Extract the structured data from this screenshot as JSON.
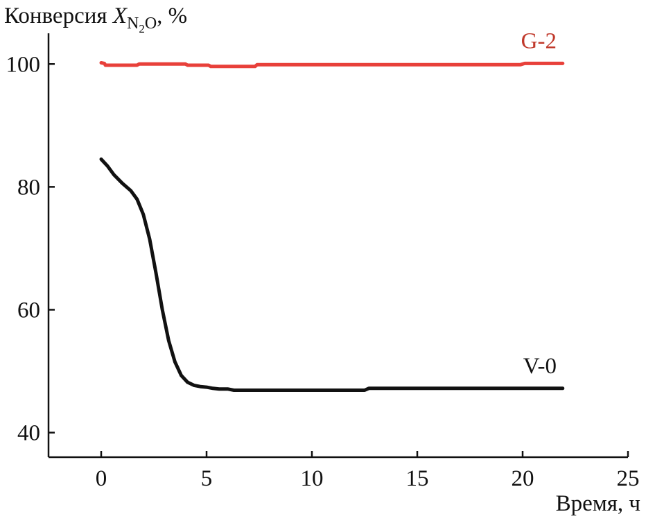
{
  "chart_data": {
    "type": "line",
    "ylabel": {
      "prefix": "Конверсия ",
      "var": "X",
      "sub_n": "N",
      "sub_2": "2",
      "sub_o": "O",
      "suffix": ", %"
    },
    "xlabel": "Время, ч",
    "xlim": [
      -2.5,
      25
    ],
    "ylim": [
      36,
      105
    ],
    "xticks": [
      0,
      5,
      10,
      15,
      20,
      25
    ],
    "yticks": [
      40,
      60,
      80,
      100
    ],
    "grid": false,
    "series": [
      {
        "name": "G-2",
        "color": "#e8403a",
        "label_color": "#c0392b",
        "x": [
          0,
          0.15,
          0.2,
          1.7,
          1.8,
          4.0,
          4.1,
          5.1,
          5.2,
          7.3,
          7.4,
          19.9,
          20.1,
          21.9
        ],
        "y": [
          100.2,
          100.1,
          99.8,
          99.8,
          100.0,
          100.0,
          99.8,
          99.8,
          99.6,
          99.6,
          99.9,
          99.9,
          100.1,
          100.1
        ]
      },
      {
        "name": "V-0",
        "color": "#111111",
        "label_color": "#111111",
        "x": [
          0,
          0.3,
          0.6,
          1.0,
          1.4,
          1.7,
          2.0,
          2.3,
          2.6,
          2.9,
          3.2,
          3.5,
          3.8,
          4.1,
          4.4,
          4.7,
          5.0,
          5.3,
          5.6,
          6.0,
          6.3,
          7.0,
          8.0,
          10.0,
          12.5,
          12.7,
          15.0,
          20.0,
          21.9
        ],
        "y": [
          84.5,
          83.4,
          82.0,
          80.6,
          79.4,
          78.0,
          75.5,
          71.5,
          66.0,
          60.0,
          55.0,
          51.5,
          49.3,
          48.2,
          47.7,
          47.5,
          47.4,
          47.2,
          47.1,
          47.1,
          46.9,
          46.9,
          46.9,
          46.9,
          46.9,
          47.2,
          47.2,
          47.2,
          47.2
        ]
      }
    ],
    "annotations": [
      "G-2",
      "V-0"
    ]
  }
}
